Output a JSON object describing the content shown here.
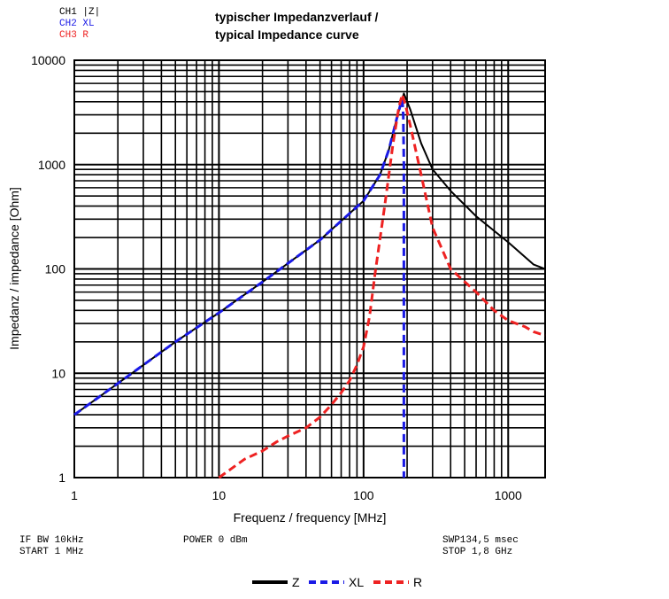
{
  "channels": [
    {
      "label": "CH1 |Z|",
      "color": "#000000"
    },
    {
      "label": "CH2 XL",
      "color": "#1a1ae6"
    },
    {
      "label": "CH3 R",
      "color": "#ee2222"
    }
  ],
  "title_line1": "typischer Impedanzverlauf /",
  "title_line2": "typical Impedance curve",
  "footer": {
    "if_bw": "IF BW 10kHz",
    "start": "START 1 MHz",
    "power": "POWER 0 dBm",
    "swp": "SWP134,5 msec",
    "stop": "STOP 1,8 GHz"
  },
  "chart_data": {
    "type": "line",
    "xscale": "log",
    "yscale": "log",
    "xlim": [
      1,
      1800
    ],
    "ylim": [
      1,
      10000
    ],
    "xlabel": "Frequenz / frequency [MHz]",
    "ylabel": "Impedanz / impedance [Ohm]",
    "xticks": [
      1,
      10,
      100,
      1000
    ],
    "xtick_labels": [
      "1",
      "10",
      "100",
      "1000"
    ],
    "yticks": [
      1,
      10,
      100,
      1000,
      10000
    ],
    "ytick_labels": [
      "1",
      "10",
      "100",
      "1000",
      "10000"
    ],
    "grid": true,
    "legend_position": "bottom-center",
    "series": [
      {
        "name": "Z",
        "color": "#000000",
        "dash": "solid",
        "x": [
          1,
          2,
          5,
          10,
          20,
          50,
          100,
          130,
          150,
          170,
          190,
          210,
          250,
          300,
          400,
          600,
          1000,
          1500,
          1800
        ],
        "y": [
          4,
          8,
          20,
          38,
          75,
          190,
          450,
          800,
          1400,
          2800,
          4800,
          3400,
          1600,
          900,
          560,
          320,
          180,
          110,
          100
        ]
      },
      {
        "name": "XL",
        "color": "#1a1ae6",
        "dash": "dashed",
        "x": [
          1,
          2,
          5,
          10,
          20,
          50,
          100,
          130,
          150,
          170,
          185,
          188,
          190,
          190
        ],
        "y": [
          4,
          8,
          20,
          38,
          75,
          190,
          450,
          800,
          1400,
          2800,
          4300,
          3000,
          1000,
          1
        ]
      },
      {
        "name": "R",
        "color": "#ee2222",
        "dash": "dashed",
        "x": [
          10,
          12,
          15,
          20,
          25,
          30,
          40,
          50,
          60,
          70,
          80,
          90,
          100,
          110,
          120,
          140,
          160,
          175,
          185,
          195,
          210,
          250,
          300,
          400,
          600,
          800,
          1000,
          1300,
          1500,
          1800
        ],
        "y": [
          1,
          1.2,
          1.5,
          1.8,
          2.2,
          2.5,
          3.0,
          3.8,
          5.0,
          6.5,
          8.5,
          12,
          18,
          35,
          90,
          400,
          1600,
          3500,
          4700,
          3700,
          2400,
          800,
          250,
          100,
          60,
          40,
          32,
          28,
          25,
          23
        ]
      }
    ]
  }
}
